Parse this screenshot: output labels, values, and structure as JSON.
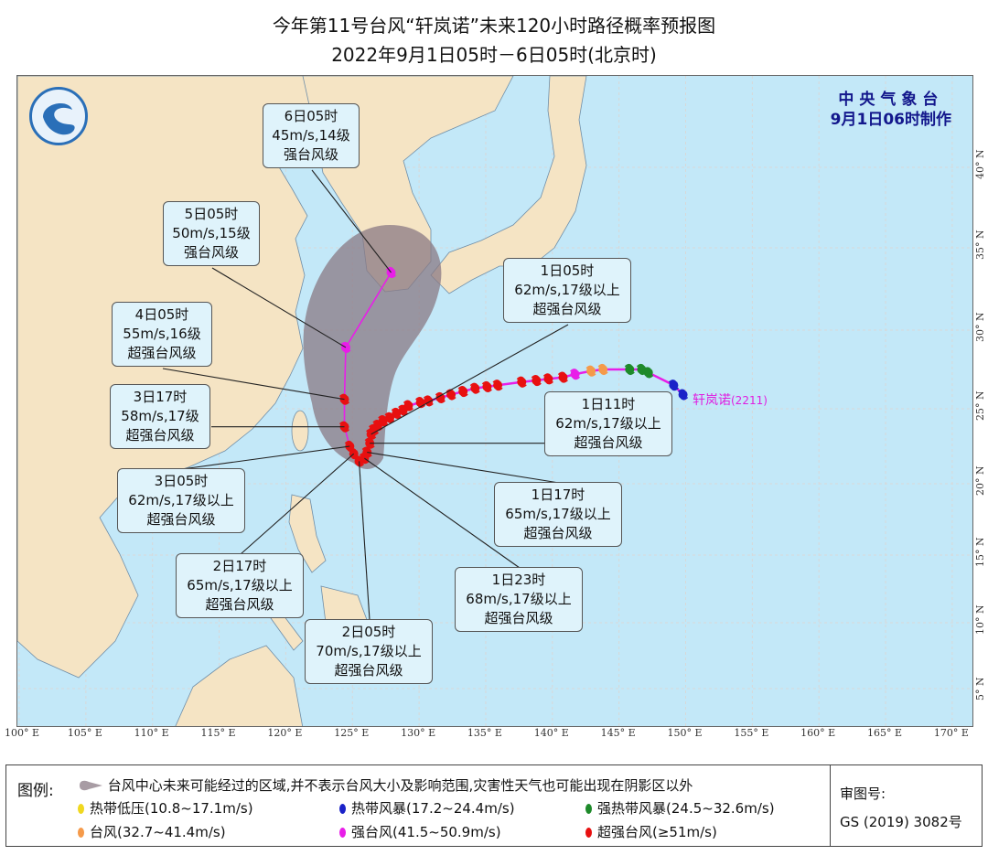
{
  "header": {
    "title": "今年第11号台风“轩岚诺”未来120小时路径概率预报图",
    "subtitle": "2022年9月1日05时－6日05时(北京时)"
  },
  "agency": {
    "name": "中央气象台",
    "made": "9月1日06时制作"
  },
  "storm": {
    "name": "轩岚诺",
    "code": "(2211)"
  },
  "axes": {
    "lon_labels": [
      "100° E",
      "105° E",
      "110° E",
      "115° E",
      "120° E",
      "125° E",
      "130° E",
      "135° E",
      "140° E",
      "145° E",
      "150° E",
      "155° E",
      "160° E",
      "165° E",
      "170° E"
    ],
    "lat_labels": [
      "5° N",
      "10° N",
      "15° N",
      "20° N",
      "25° N",
      "30° N",
      "35° N",
      "40° N"
    ]
  },
  "colors": {
    "tropical_depression": "#f0d820",
    "tropical_storm": "#1a22c8",
    "severe_tropical_storm": "#1e8a2a",
    "typhoon": "#f59a4a",
    "severe_typhoon": "#e81ee8",
    "super_typhoon": "#e81010",
    "track_line": "#e81ee8",
    "cone": "#8a7a84",
    "ocean": "#c3e8f8",
    "land": "#f5e4c4"
  },
  "past_track": [
    {
      "lon": 149.8,
      "lat": 25.9,
      "cat": "tropical_storm"
    },
    {
      "lon": 149.1,
      "lat": 26.5,
      "cat": "tropical_storm"
    },
    {
      "lon": 147.2,
      "lat": 27.3,
      "cat": "severe_tropical_storm"
    },
    {
      "lon": 146.7,
      "lat": 27.5,
      "cat": "severe_tropical_storm"
    },
    {
      "lon": 145.8,
      "lat": 27.5,
      "cat": "severe_tropical_storm"
    },
    {
      "lon": 143.8,
      "lat": 27.5,
      "cat": "typhoon"
    },
    {
      "lon": 142.9,
      "lat": 27.4,
      "cat": "typhoon"
    },
    {
      "lon": 141.7,
      "lat": 27.2,
      "cat": "severe_typhoon"
    },
    {
      "lon": 140.8,
      "lat": 27.0,
      "cat": "super_typhoon"
    },
    {
      "lon": 139.7,
      "lat": 26.9,
      "cat": "super_typhoon"
    },
    {
      "lon": 138.8,
      "lat": 26.8,
      "cat": "super_typhoon"
    },
    {
      "lon": 137.7,
      "lat": 26.7,
      "cat": "super_typhoon"
    },
    {
      "lon": 135.9,
      "lat": 26.5,
      "cat": "super_typhoon"
    },
    {
      "lon": 135.1,
      "lat": 26.4,
      "cat": "super_typhoon"
    },
    {
      "lon": 134.2,
      "lat": 26.3,
      "cat": "super_typhoon"
    },
    {
      "lon": 133.3,
      "lat": 26.1,
      "cat": "super_typhoon"
    },
    {
      "lon": 132.4,
      "lat": 25.9,
      "cat": "super_typhoon"
    },
    {
      "lon": 131.6,
      "lat": 25.7,
      "cat": "super_typhoon"
    },
    {
      "lon": 130.7,
      "lat": 25.5,
      "cat": "super_typhoon"
    },
    {
      "lon": 130.1,
      "lat": 25.4,
      "cat": "super_typhoon"
    },
    {
      "lon": 129.2,
      "lat": 25.2,
      "cat": "super_typhoon"
    },
    {
      "lon": 128.8,
      "lat": 24.9,
      "cat": "super_typhoon"
    },
    {
      "lon": 128.3,
      "lat": 24.7,
      "cat": "super_typhoon"
    },
    {
      "lon": 127.8,
      "lat": 24.4,
      "cat": "super_typhoon"
    },
    {
      "lon": 127.3,
      "lat": 24.2,
      "cat": "super_typhoon"
    },
    {
      "lon": 126.9,
      "lat": 23.9,
      "cat": "super_typhoon"
    },
    {
      "lon": 126.6,
      "lat": 23.6,
      "cat": "super_typhoon"
    }
  ],
  "forecast": [
    {
      "time": "1日05时",
      "wind": "62m/s,17级以上",
      "grade": "超强台风级",
      "lon": 126.4,
      "lat": 23.3,
      "cat": "super_typhoon"
    },
    {
      "time": "1日11时",
      "wind": "62m/s,17级以上",
      "grade": "超强台风级",
      "lon": 126.3,
      "lat": 22.7,
      "cat": "super_typhoon"
    },
    {
      "time": "1日17时",
      "wind": "65m/s,17级以上",
      "grade": "超强台风级",
      "lon": 126.1,
      "lat": 22.1,
      "cat": "super_typhoon"
    },
    {
      "time": "1日23时",
      "wind": "68m/s,17级以上",
      "grade": "超强台风级",
      "lon": 125.9,
      "lat": 21.7,
      "cat": "super_typhoon"
    },
    {
      "time": "2日05时",
      "wind": "70m/s,17级以上",
      "grade": "超强台风级",
      "lon": 125.5,
      "lat": 21.5,
      "cat": "super_typhoon"
    },
    {
      "time": "2日17时",
      "wind": "65m/s,17级以上",
      "grade": "超强台风级",
      "lon": 125.1,
      "lat": 22.0,
      "cat": "super_typhoon"
    },
    {
      "time": "3日05时",
      "wind": "62m/s,17级以上",
      "grade": "超强台风级",
      "lon": 124.8,
      "lat": 22.5,
      "cat": "super_typhoon"
    },
    {
      "time": "3日17时",
      "wind": "58m/s,17级",
      "grade": "超强台风级",
      "lon": 124.4,
      "lat": 23.8,
      "cat": "super_typhoon"
    },
    {
      "time": "4日05时",
      "wind": "55m/s,16级",
      "grade": "超强台风级",
      "lon": 124.4,
      "lat": 25.6,
      "cat": "super_typhoon"
    },
    {
      "time": "5日05时",
      "wind": "50m/s,15级",
      "grade": "强台风级",
      "lon": 124.5,
      "lat": 28.9,
      "cat": "severe_typhoon"
    },
    {
      "time": "6日05时",
      "wind": "45m/s,14级",
      "grade": "强台风级",
      "lon": 127.9,
      "lat": 33.5,
      "cat": "severe_typhoon"
    }
  ],
  "legend": {
    "title": "图例:",
    "cone_text": "台风中心未来可能经过的区域,并不表示台风大小及影响范围,灾害性天气也可能出现在阴影区以外",
    "items": [
      {
        "label": "热带低压(10.8~17.1m/s)",
        "cat": "tropical_depression"
      },
      {
        "label": "热带风暴(17.2~24.4m/s)",
        "cat": "tropical_storm"
      },
      {
        "label": "强热带风暴(24.5~32.6m/s)",
        "cat": "severe_tropical_storm"
      },
      {
        "label": "台风(32.7~41.4m/s)",
        "cat": "typhoon"
      },
      {
        "label": "强台风(41.5~50.9m/s)",
        "cat": "severe_typhoon"
      },
      {
        "label": "超强台风(≥51m/s)",
        "cat": "super_typhoon"
      }
    ],
    "review_label": "审图号:",
    "review_number": "GS (2019) 3082号"
  }
}
